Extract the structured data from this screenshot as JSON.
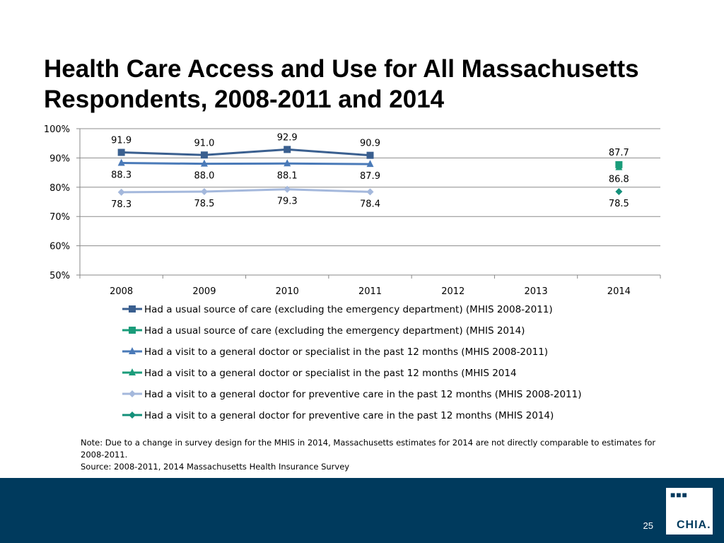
{
  "slide": {
    "title": "Health Care Access and Use for All Massachusetts Respondents, 2008-2011 and 2014",
    "note": "Note: Due to a change in survey design for the MHIS in 2014, Massachusetts estimates for 2014 are not directly comparable to estimates for 2008-2011.",
    "source": "Source:  2008-2011, 2014 Massachusetts Health Insurance Survey",
    "page_number": "25",
    "logo_text": "CHIA.",
    "logo_dots": "■■■"
  },
  "chart_data": {
    "type": "line",
    "x": [
      "2008",
      "2009",
      "2010",
      "2011",
      "2012",
      "2013",
      "2014"
    ],
    "ylim": [
      50,
      100
    ],
    "yticks": [
      "50%",
      "60%",
      "70%",
      "80%",
      "90%",
      "100%"
    ],
    "ytick_values": [
      50,
      60,
      70,
      80,
      90,
      100
    ],
    "grid": true,
    "legend_position": "bottom",
    "series": [
      {
        "name": "Had a usual source of care (excluding the emergency department) (MHIS 2008-2011)",
        "values": [
          91.9,
          91.0,
          92.9,
          90.9,
          null,
          null,
          null
        ],
        "labels": [
          "91.9",
          "91.0",
          "92.9",
          "90.9",
          "",
          "",
          ""
        ],
        "color": "#3a5f8f",
        "marker": "square",
        "label_pos": "above"
      },
      {
        "name": "Had a usual source of care (excluding the emergency department) (MHIS 2014)",
        "values": [
          null,
          null,
          null,
          null,
          null,
          null,
          87.7
        ],
        "labels": [
          "",
          "",
          "",
          "",
          "",
          "",
          "87.7"
        ],
        "color": "#1a9c7a",
        "marker": "square",
        "label_pos": "above"
      },
      {
        "name": "Had a visit to a general doctor or specialist in the past 12 months (MHIS 2008-2011)",
        "values": [
          88.3,
          88.0,
          88.1,
          87.9,
          null,
          null,
          null
        ],
        "labels": [
          "88.3",
          "88.0",
          "88.1",
          "87.9",
          "",
          "",
          ""
        ],
        "color": "#4a7ab8",
        "marker": "triangle",
        "label_pos": "below"
      },
      {
        "name": "Had a visit to a general doctor or specialist in the past 12 months (MHIS 2014",
        "values": [
          null,
          null,
          null,
          null,
          null,
          null,
          86.8
        ],
        "labels": [
          "",
          "",
          "",
          "",
          "",
          "",
          "86.8"
        ],
        "color": "#1a9c7a",
        "marker": "triangle",
        "label_pos": "below"
      },
      {
        "name": "Had a visit to a general doctor for preventive care in the past 12 months (MHIS 2008-2011)",
        "values": [
          78.3,
          78.5,
          79.3,
          78.4,
          null,
          null,
          null
        ],
        "labels": [
          "78.3",
          "78.5",
          "79.3",
          "78.4",
          "",
          "",
          ""
        ],
        "color": "#a4b8dc",
        "marker": "diamond",
        "label_pos": "below"
      },
      {
        "name": "Had a visit to a general doctor for preventive care in the past 12 months (MHIS 2014)",
        "values": [
          null,
          null,
          null,
          null,
          null,
          null,
          78.5
        ],
        "labels": [
          "",
          "",
          "",
          "",
          "",
          "",
          "78.5"
        ],
        "color": "#14907a",
        "marker": "diamond",
        "label_pos": "below"
      }
    ]
  }
}
